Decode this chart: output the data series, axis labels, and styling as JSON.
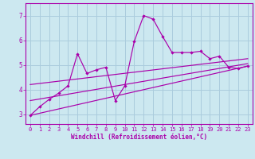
{
  "xlabel": "Windchill (Refroidissement éolien,°C)",
  "bg_color": "#cce8f0",
  "grid_color": "#aaccdd",
  "line_color": "#aa00aa",
  "xlim": [
    -0.5,
    23.5
  ],
  "ylim": [
    2.6,
    7.5
  ],
  "yticks": [
    3,
    4,
    5,
    6,
    7
  ],
  "xticks": [
    0,
    1,
    2,
    3,
    4,
    5,
    6,
    7,
    8,
    9,
    10,
    11,
    12,
    13,
    14,
    15,
    16,
    17,
    18,
    19,
    20,
    21,
    22,
    23
  ],
  "line1_x": [
    0,
    1,
    2,
    3,
    4,
    5,
    6,
    7,
    8,
    9,
    10,
    11,
    12,
    13,
    14,
    15,
    16,
    17,
    18,
    19,
    20,
    21,
    22,
    23
  ],
  "line1_y": [
    2.95,
    3.3,
    3.6,
    3.85,
    4.15,
    5.45,
    4.65,
    4.8,
    4.9,
    3.55,
    4.15,
    5.95,
    7.0,
    6.85,
    6.15,
    5.5,
    5.5,
    5.5,
    5.55,
    5.25,
    5.35,
    4.9,
    4.85,
    4.95
  ],
  "line2_x": [
    0,
    23
  ],
  "line2_y": [
    2.95,
    4.95
  ],
  "line3_x": [
    0,
    23
  ],
  "line3_y": [
    3.55,
    5.05
  ],
  "line4_x": [
    0,
    23
  ],
  "line4_y": [
    4.2,
    5.25
  ]
}
